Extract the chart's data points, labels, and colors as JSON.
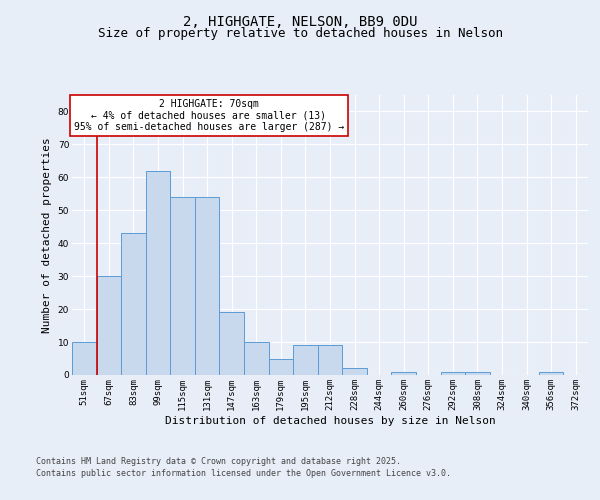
{
  "title1": "2, HIGHGATE, NELSON, BB9 0DU",
  "title2": "Size of property relative to detached houses in Nelson",
  "xlabel": "Distribution of detached houses by size in Nelson",
  "ylabel": "Number of detached properties",
  "categories": [
    "51sqm",
    "67sqm",
    "83sqm",
    "99sqm",
    "115sqm",
    "131sqm",
    "147sqm",
    "163sqm",
    "179sqm",
    "195sqm",
    "212sqm",
    "228sqm",
    "244sqm",
    "260sqm",
    "276sqm",
    "292sqm",
    "308sqm",
    "324sqm",
    "340sqm",
    "356sqm",
    "372sqm"
  ],
  "values": [
    10,
    30,
    43,
    62,
    54,
    54,
    19,
    10,
    5,
    9,
    9,
    2,
    0,
    1,
    0,
    1,
    1,
    0,
    0,
    1,
    0
  ],
  "bar_color": "#c8d9ee",
  "bar_edge_color": "#5b9bd5",
  "vline_color": "#cc0000",
  "vline_x": 0.5,
  "annotation_text": "2 HIGHGATE: 70sqm\n← 4% of detached houses are smaller (13)\n95% of semi-detached houses are larger (287) →",
  "annotation_edge_color": "#cc0000",
  "ylim": [
    0,
    85
  ],
  "yticks": [
    0,
    10,
    20,
    30,
    40,
    50,
    60,
    70,
    80
  ],
  "footer1": "Contains HM Land Registry data © Crown copyright and database right 2025.",
  "footer2": "Contains public sector information licensed under the Open Government Licence v3.0.",
  "bg_color": "#e8eef8",
  "grid_color": "#ffffff",
  "title_fontsize": 10,
  "subtitle_fontsize": 9,
  "tick_fontsize": 6.5,
  "axis_label_fontsize": 8,
  "annotation_fontsize": 7,
  "footer_fontsize": 6
}
